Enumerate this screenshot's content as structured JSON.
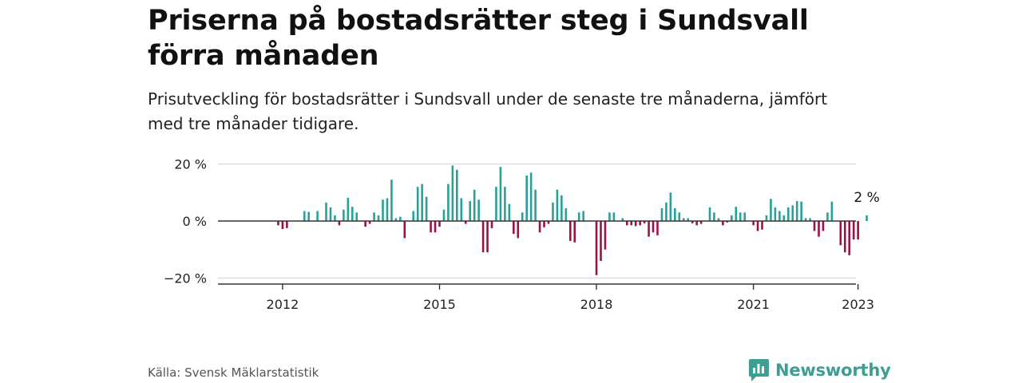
{
  "header": {
    "title": "Priserna på bostadsrätter steg i Sundsvall förra månaden",
    "subtitle": "Prisutveckling för bostadsrätter i Sundsvall under de senaste tre månaderna, jämfört med tre månader tidigare."
  },
  "footer": {
    "source": "Källa: Svensk Mäklarstatistik",
    "brand": "Newsworthy"
  },
  "colors": {
    "positive": "#2aa198",
    "negative": "#9c1244",
    "grid": "#d9d9d9",
    "axis": "#333333",
    "brand": "#3e9e94"
  },
  "icons": {
    "brand_logo": "newsworthy-logo-icon"
  },
  "chart_data": {
    "type": "bar",
    "title": "",
    "xlabel": "",
    "ylabel": "",
    "ylim": [
      -22,
      22
    ],
    "yticks": [
      20,
      0,
      -20
    ],
    "ytick_labels": [
      "20 %",
      "0 %",
      "−20 %"
    ],
    "xticks": [
      2012,
      2015,
      2018,
      2021,
      2023
    ],
    "x_start": "2011-01",
    "x_end": "2023-01",
    "annotation": {
      "label": "2 %",
      "target": "last"
    },
    "series": [
      {
        "values": [
          0,
          0,
          0,
          0,
          0,
          0,
          0,
          0,
          0,
          0,
          0,
          -1.5,
          -2.8,
          -2.5,
          0,
          0,
          0,
          3.5,
          3.2,
          0,
          3.5,
          0,
          6.5,
          4.8,
          2,
          -1.5,
          4,
          8.2,
          5,
          3,
          0,
          -2,
          -1,
          3,
          2,
          7.5,
          8,
          14.5,
          1,
          1.5,
          -6,
          0,
          3.5,
          12,
          13,
          8.5,
          -4,
          -4,
          -2,
          4,
          13,
          19.5,
          18,
          8,
          -1,
          7,
          11,
          7.5,
          -11,
          -11,
          -2.5,
          12,
          19,
          12,
          6,
          -4.5,
          -6,
          3,
          16,
          17,
          11,
          -4,
          -2.2,
          -1,
          6.5,
          11,
          9,
          4.5,
          -7,
          -7.5,
          3,
          3.5,
          0,
          0,
          -19,
          -14,
          -10,
          3,
          3,
          0,
          1,
          -1.5,
          -1.5,
          -1.8,
          -1.5,
          -0.8,
          -5.5,
          -4,
          -5,
          4.5,
          6.5,
          10,
          4.5,
          3,
          1,
          1,
          -0.8,
          -1.5,
          -1,
          0,
          4.8,
          3,
          1,
          -1.5,
          -0.5,
          2,
          5,
          3,
          3,
          0,
          -1.5,
          -3.5,
          -3,
          2,
          7.8,
          4.8,
          3.5,
          2,
          4.8,
          5.5,
          7,
          6.8,
          1,
          1,
          -3.5,
          -5.5,
          -3.5,
          3,
          6.8,
          0,
          -8.5,
          -11,
          -12,
          -6.5,
          -6.5,
          0,
          2
        ]
      }
    ]
  }
}
